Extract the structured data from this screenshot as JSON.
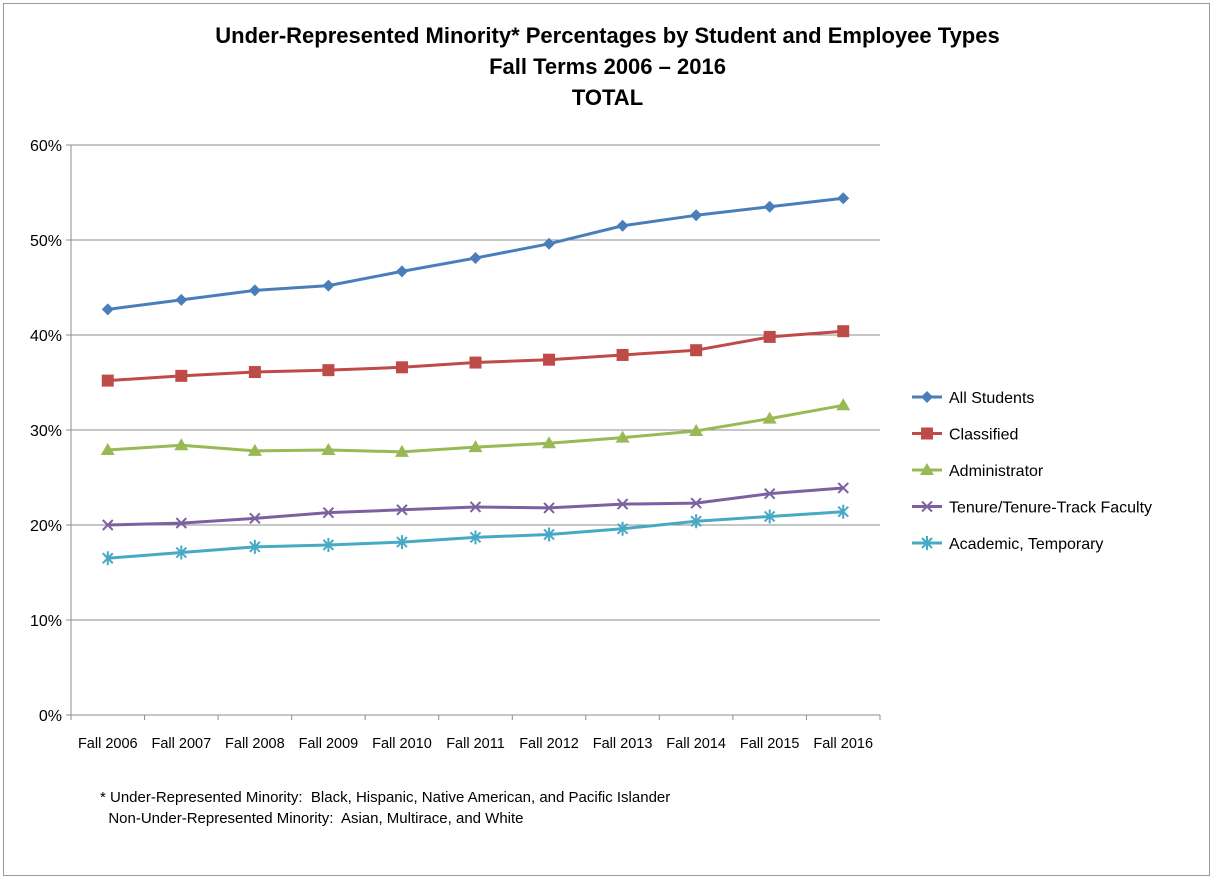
{
  "chart_data": {
    "type": "line",
    "title": "Under-Represented Minority* Percentages by Student and Employee Types",
    "subtitle": "Fall Terms 2006 – 2016",
    "subtitle2": "TOTAL",
    "xlabel": "",
    "ylabel": "",
    "ylim": [
      0,
      60
    ],
    "yticks": [
      "0%",
      "10%",
      "20%",
      "30%",
      "40%",
      "50%",
      "60%"
    ],
    "yticks_values": [
      0,
      10,
      20,
      30,
      40,
      50,
      60
    ],
    "grid": true,
    "legend_position": "right",
    "categories": [
      "Fall 2006",
      "Fall 2007",
      "Fall 2008",
      "Fall 2009",
      "Fall 2010",
      "Fall 2011",
      "Fall 2012",
      "Fall 2013",
      "Fall 2014",
      "Fall 2015",
      "Fall 2016"
    ],
    "series": [
      {
        "name": "All Students",
        "color": "#4a7ebb",
        "marker": "diamond",
        "values": [
          42.7,
          43.7,
          44.7,
          45.2,
          46.7,
          48.1,
          49.6,
          51.5,
          52.6,
          53.5,
          54.4
        ]
      },
      {
        "name": "Classified",
        "color": "#be4b48",
        "marker": "square",
        "values": [
          35.2,
          35.7,
          36.1,
          36.3,
          36.6,
          37.1,
          37.4,
          37.9,
          38.4,
          39.8,
          40.4
        ]
      },
      {
        "name": "Administrator",
        "color": "#98b954",
        "marker": "triangle",
        "values": [
          27.9,
          28.4,
          27.8,
          27.9,
          27.7,
          28.2,
          28.6,
          29.2,
          29.9,
          31.2,
          32.6
        ]
      },
      {
        "name": "Tenure/Tenure-Track Faculty",
        "color": "#7d60a0",
        "marker": "x",
        "values": [
          20.0,
          20.2,
          20.7,
          21.3,
          21.6,
          21.9,
          21.8,
          22.2,
          22.3,
          23.3,
          23.9
        ]
      },
      {
        "name": "Academic, Temporary",
        "color": "#46aac5",
        "marker": "star",
        "values": [
          16.5,
          17.1,
          17.7,
          17.9,
          18.2,
          18.7,
          19.0,
          19.6,
          20.4,
          20.9,
          21.4
        ]
      }
    ]
  },
  "footnote": {
    "line1": "* Under-Represented Minority:  Black, Hispanic, Native American, and Pacific Islander",
    "line2": "  Non-Under-Represented Minority:  Asian, Multirace, and White"
  }
}
